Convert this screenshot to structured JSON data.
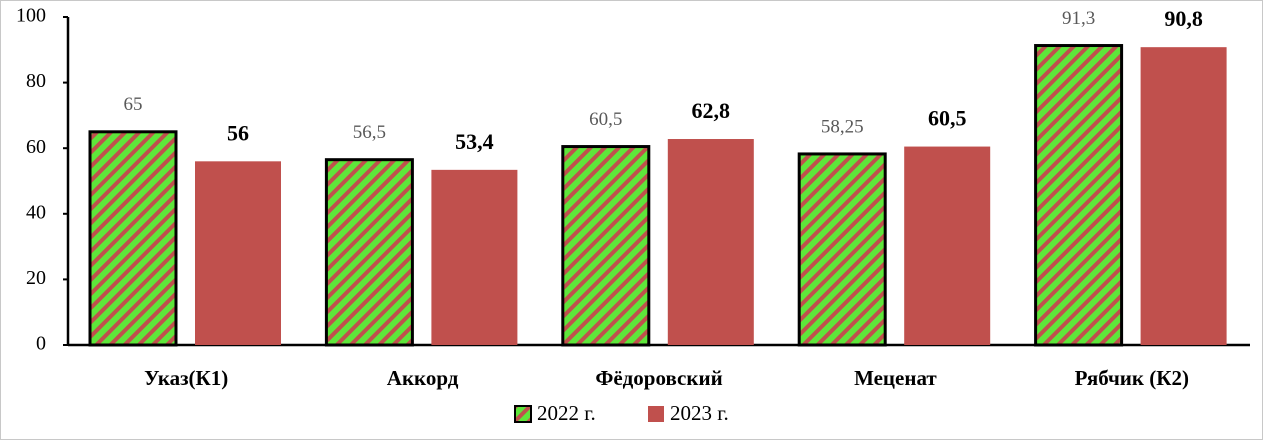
{
  "chart_data": {
    "type": "bar",
    "categories": [
      "Указ(К1)",
      "Аккорд",
      "Фёдоровский",
      "Меценат",
      "Рябчик (К2)"
    ],
    "series": [
      {
        "name": "2022 г.",
        "color": "#5ee63a",
        "hatch": "#c0504d",
        "values": [
          65,
          56.5,
          60.5,
          58.25,
          91.3
        ],
        "value_labels": [
          "65",
          "56,5",
          "60,5",
          "58,25",
          "91,3"
        ]
      },
      {
        "name": "2023 г.",
        "color": "#c0504d",
        "values": [
          56,
          53.4,
          62.8,
          60.5,
          90.8
        ],
        "value_labels": [
          "56",
          "53,4",
          "62,8",
          "60,5",
          "90,8"
        ]
      }
    ],
    "ylim": [
      0,
      100
    ],
    "yticks": [
      0,
      20,
      40,
      60,
      80,
      100
    ],
    "grid": false,
    "legend": "bottom"
  }
}
